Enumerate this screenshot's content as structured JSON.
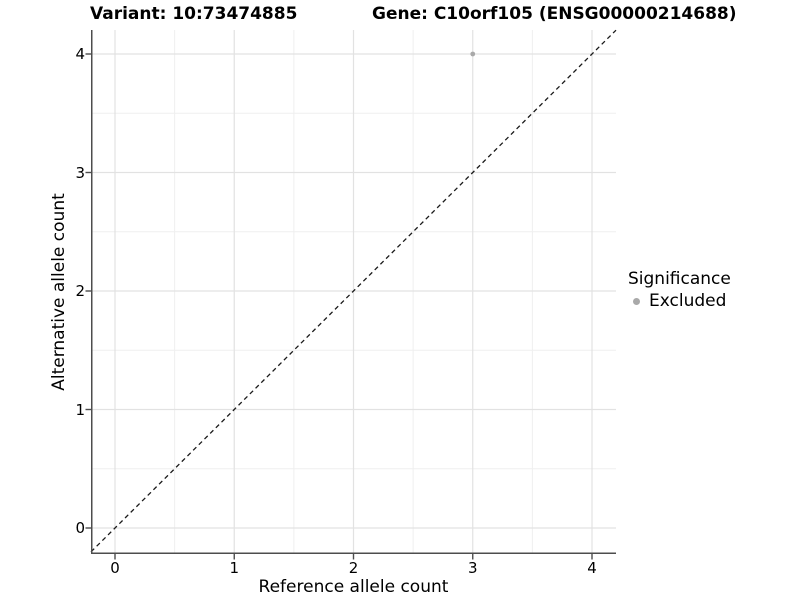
{
  "titles": {
    "variant": "Variant: 10:73474885",
    "gene": "Gene: C10orf105 (ENSG00000214688)"
  },
  "axis": {
    "x_label": "Reference allele count",
    "y_label": "Alternative allele count"
  },
  "legend": {
    "title": "Significance",
    "items": [
      {
        "label": "Excluded",
        "color": "#a9a9a9"
      }
    ]
  },
  "chart_data": {
    "type": "scatter",
    "title_left": "Variant: 10:73474885",
    "title_right": "Gene: C10orf105 (ENSG00000214688)",
    "xlabel": "Reference allele count",
    "ylabel": "Alternative allele count",
    "xlim": [
      -0.2,
      4.2
    ],
    "ylim": [
      -0.2,
      4.2
    ],
    "x_ticks": [
      0,
      1,
      2,
      3,
      4
    ],
    "y_ticks": [
      0,
      1,
      2,
      3,
      4
    ],
    "grid": true,
    "minor_gridlines": true,
    "series": [
      {
        "name": "Excluded",
        "color": "#a9a9a9",
        "marker_radius": 2.4,
        "points": [
          [
            3,
            4
          ]
        ]
      }
    ],
    "reference_line": {
      "type": "identity y=x",
      "style": "dashed",
      "color": "#1a1a1a"
    },
    "legend_title": "Significance",
    "legend_position": "right-center"
  },
  "colors": {
    "background": "#ffffff",
    "axis_line": "#4d4d4d",
    "major_grid": "#e2e2e2",
    "minor_grid": "#efefef",
    "dashed_line": "#1a1a1a",
    "point": "#a9a9a9",
    "text": "#000000"
  }
}
